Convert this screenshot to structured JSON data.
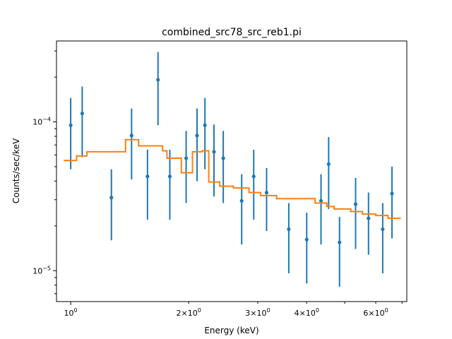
{
  "chart_data": {
    "type": "scatter",
    "title": "combined_src78_src_reb1.pi",
    "xlabel": "Energy (keV)",
    "ylabel": "Counts/sec/keV",
    "xscale": "log",
    "yscale": "log",
    "xlim": [
      0.92,
      7.2
    ],
    "ylim": [
      6.2e-06,
      0.00035
    ],
    "x_major_ticks": [
      {
        "value": 1,
        "label": "10",
        "exp": "0"
      }
    ],
    "x_minor_ticks": [
      {
        "value": 2,
        "label": "2×10",
        "exp": "0"
      },
      {
        "value": 3,
        "label": "3×10",
        "exp": "0"
      },
      {
        "value": 4,
        "label": "4×10",
        "exp": "0"
      },
      {
        "value": 6,
        "label": "6×10",
        "exp": "0"
      }
    ],
    "x_unlabeled_minor": [
      0.9,
      5,
      7
    ],
    "y_major_ticks": [
      {
        "value": 1e-05,
        "label": "10",
        "exp": "−5"
      },
      {
        "value": 0.0001,
        "label": "10",
        "exp": "−4"
      }
    ],
    "series": [
      {
        "type": "errorbar",
        "color": "#1f77b4",
        "points": [
          {
            "x": 1.0,
            "y": 9.5e-05,
            "ylo": 4.8e-05,
            "yhi": 0.000145
          },
          {
            "x": 1.07,
            "y": 0.000114,
            "ylo": 5.8e-05,
            "yhi": 0.000173
          },
          {
            "x": 1.27,
            "y": 3.1e-05,
            "ylo": 1.6e-05,
            "yhi": 4.8e-05
          },
          {
            "x": 1.43,
            "y": 8.1e-05,
            "ylo": 4.1e-05,
            "yhi": 0.000123
          },
          {
            "x": 1.57,
            "y": 4.3e-05,
            "ylo": 2.2e-05,
            "yhi": 6.5e-05
          },
          {
            "x": 1.67,
            "y": 0.000192,
            "ylo": 9.5e-05,
            "yhi": 0.000295
          },
          {
            "x": 1.79,
            "y": 4.3e-05,
            "ylo": 2.2e-05,
            "yhi": 6.5e-05
          },
          {
            "x": 1.97,
            "y": 5.7e-05,
            "ylo": 2.85e-05,
            "yhi": 8.7e-05
          },
          {
            "x": 2.1,
            "y": 8.1e-05,
            "ylo": 4e-05,
            "yhi": 0.000123
          },
          {
            "x": 2.2,
            "y": 9.5e-05,
            "ylo": 4.8e-05,
            "yhi": 0.000145
          },
          {
            "x": 2.32,
            "y": 6.3e-05,
            "ylo": 3.15e-05,
            "yhi": 9.6e-05
          },
          {
            "x": 2.45,
            "y": 5.7e-05,
            "ylo": 2.85e-05,
            "yhi": 8.7e-05
          },
          {
            "x": 2.73,
            "y": 2.95e-05,
            "ylo": 1.5e-05,
            "yhi": 4.45e-05
          },
          {
            "x": 2.93,
            "y": 4.3e-05,
            "ylo": 2.2e-05,
            "yhi": 6.5e-05
          },
          {
            "x": 3.16,
            "y": 3.35e-05,
            "ylo": 1.85e-05,
            "yhi": 4.9e-05
          },
          {
            "x": 3.6,
            "y": 1.9e-05,
            "ylo": 9.6e-06,
            "yhi": 2.85e-05
          },
          {
            "x": 4.0,
            "y": 1.62e-05,
            "ylo": 8.2e-06,
            "yhi": 2.45e-05
          },
          {
            "x": 4.35,
            "y": 2.95e-05,
            "ylo": 1.5e-05,
            "yhi": 4.45e-05
          },
          {
            "x": 4.55,
            "y": 5.2e-05,
            "ylo": 2.6e-05,
            "yhi": 7.9e-05
          },
          {
            "x": 4.85,
            "y": 1.55e-05,
            "ylo": 7.8e-06,
            "yhi": 2.3e-05
          },
          {
            "x": 5.33,
            "y": 2.8e-05,
            "ylo": 1.4e-05,
            "yhi": 4.2e-05
          },
          {
            "x": 5.75,
            "y": 2.25e-05,
            "ylo": 1.28e-05,
            "yhi": 3.35e-05
          },
          {
            "x": 6.25,
            "y": 1.9e-05,
            "ylo": 9.6e-06,
            "yhi": 2.85e-05
          },
          {
            "x": 6.6,
            "y": 3.3e-05,
            "ylo": 1.65e-05,
            "yhi": 5e-05
          }
        ]
      },
      {
        "type": "step",
        "color": "#ff7f0e",
        "steps": [
          {
            "x0": 0.96,
            "x1": 1.035,
            "y": 5.5e-05
          },
          {
            "x0": 1.035,
            "x1": 1.1,
            "y": 5.9e-05
          },
          {
            "x0": 1.1,
            "x1": 1.38,
            "y": 6.3e-05
          },
          {
            "x0": 1.38,
            "x1": 1.49,
            "y": 7.6e-05
          },
          {
            "x0": 1.49,
            "x1": 1.715,
            "y": 6.9e-05
          },
          {
            "x0": 1.715,
            "x1": 1.76,
            "y": 6.4e-05
          },
          {
            "x0": 1.76,
            "x1": 1.915,
            "y": 5.7e-05
          },
          {
            "x0": 1.915,
            "x1": 2.045,
            "y": 4.55e-05
          },
          {
            "x0": 2.045,
            "x1": 2.165,
            "y": 6.3e-05
          },
          {
            "x0": 2.165,
            "x1": 2.25,
            "y": 6.4e-05
          },
          {
            "x0": 2.25,
            "x1": 2.4,
            "y": 3.95e-05
          },
          {
            "x0": 2.4,
            "x1": 2.6,
            "y": 3.7e-05
          },
          {
            "x0": 2.6,
            "x1": 2.85,
            "y": 3.6e-05
          },
          {
            "x0": 2.85,
            "x1": 3.05,
            "y": 3.35e-05
          },
          {
            "x0": 3.05,
            "x1": 3.35,
            "y": 3.2e-05
          },
          {
            "x0": 3.35,
            "x1": 4.2,
            "y": 3.05e-05
          },
          {
            "x0": 4.2,
            "x1": 4.5,
            "y": 2.85e-05
          },
          {
            "x0": 4.5,
            "x1": 4.7,
            "y": 2.7e-05
          },
          {
            "x0": 4.7,
            "x1": 5.18,
            "y": 2.6e-05
          },
          {
            "x0": 5.18,
            "x1": 5.55,
            "y": 2.5e-05
          },
          {
            "x0": 5.55,
            "x1": 6.0,
            "y": 2.4e-05
          },
          {
            "x0": 6.0,
            "x1": 6.45,
            "y": 2.35e-05
          },
          {
            "x0": 6.45,
            "x1": 6.95,
            "y": 2.25e-05
          }
        ]
      }
    ],
    "grid": false,
    "legend": "none"
  }
}
